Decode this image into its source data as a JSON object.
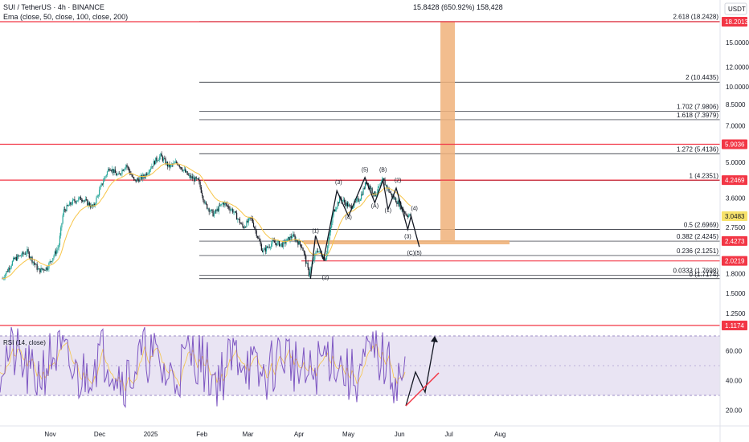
{
  "header": {
    "symbol": "SUI / TetherUS · 4h · BINANCE",
    "indicator": "Ema (close, 50, close, 100, close, 200)",
    "measure": "15.8428 (650.92%) 158,428",
    "currency": "USDT"
  },
  "rsi_label": "RSI (14, close)",
  "colors": {
    "candle_up": "#26a69a",
    "candle_dark": "#131722",
    "ema": "#f7c548",
    "resistance": "#f23645",
    "target_box": "#f0b27a",
    "rsi_band": "#e9e4f3",
    "rsi_line": "#7e57c2"
  },
  "chart_data": {
    "type": "candlestick",
    "y_scale": "log",
    "ylim": [
      1.12,
      20.5
    ],
    "x_labels": [
      "Nov",
      "Dec",
      "2025",
      "Feb",
      "Mar",
      "Apr",
      "May",
      "Jun",
      "Jul",
      "Aug"
    ],
    "y_ticks": [
      "15.0000",
      "12.0000",
      "10.0000",
      "8.5000",
      "7.0000",
      "5.0000",
      "3.6000",
      "2.7500",
      "1.8000",
      "1.5000",
      "1.2500"
    ],
    "rsi_ticks": [
      "60.00",
      "40.00",
      "20.00"
    ],
    "price_tags": [
      {
        "text": "18.2013",
        "value": 18.2013,
        "kind": "red"
      },
      {
        "text": "5.9036",
        "value": 5.9036,
        "kind": "red"
      },
      {
        "text": "4.2469",
        "value": 4.2469,
        "kind": "red"
      },
      {
        "text": "3.0483",
        "value": 3.0483,
        "kind": "yellow"
      },
      {
        "text": "2.4273",
        "value": 2.4273,
        "kind": "red"
      },
      {
        "text": "2.0219",
        "value": 2.0219,
        "kind": "red"
      },
      {
        "text": "1.1174",
        "value": 1.1174,
        "kind": "red"
      }
    ],
    "fib_levels": [
      {
        "label": "2.618 (18.2428)",
        "value": 18.2428
      },
      {
        "label": "2 (10.4435)",
        "value": 10.4435
      },
      {
        "label": "1.702 (7.9806)",
        "value": 7.9806
      },
      {
        "label": "1.618 (7.3979)",
        "value": 7.3979
      },
      {
        "label": "1.272 (5.4136)",
        "value": 5.4136
      },
      {
        "label": "1 (4.2351)",
        "value": 4.2351
      },
      {
        "label": "0.5 (2.6969)",
        "value": 2.6969
      },
      {
        "label": "0.382 (2.4245)",
        "value": 2.4245
      },
      {
        "label": "0.236 (2.1251)",
        "value": 2.1251
      },
      {
        "label": "0.0333 (1.7698)",
        "value": 1.7698
      },
      {
        "label": "0 (1.7174)",
        "value": 1.7174
      }
    ],
    "wave_labels": [
      {
        "text": "(1)",
        "date": "2025-04-11",
        "price": 2.62
      },
      {
        "text": "(2)",
        "date": "2025-04-17",
        "price": 1.71
      },
      {
        "text": "(3)",
        "date": "2025-04-25",
        "price": 4.1
      },
      {
        "text": "(4)",
        "date": "2025-05-01",
        "price": 2.97
      },
      {
        "text": "(5)",
        "date": "2025-05-11",
        "price": 4.6
      },
      {
        "text": "(B)",
        "date": "2025-05-22",
        "price": 4.6
      },
      {
        "text": "(A)",
        "date": "2025-05-17",
        "price": 3.3
      },
      {
        "text": "(1)",
        "date": "2025-05-25",
        "price": 3.17
      },
      {
        "text": "(2)",
        "date": "2025-05-31",
        "price": 4.18
      },
      {
        "text": "(4)",
        "date": "2025-06-10",
        "price": 3.22
      },
      {
        "text": "(3)",
        "date": "2025-06-06",
        "price": 2.49
      },
      {
        "text": "(C)(5)",
        "date": "2025-06-10",
        "price": 2.14
      }
    ],
    "projection": [
      {
        "date": "2025-06-16",
        "price": 2.7
      }
    ]
  }
}
